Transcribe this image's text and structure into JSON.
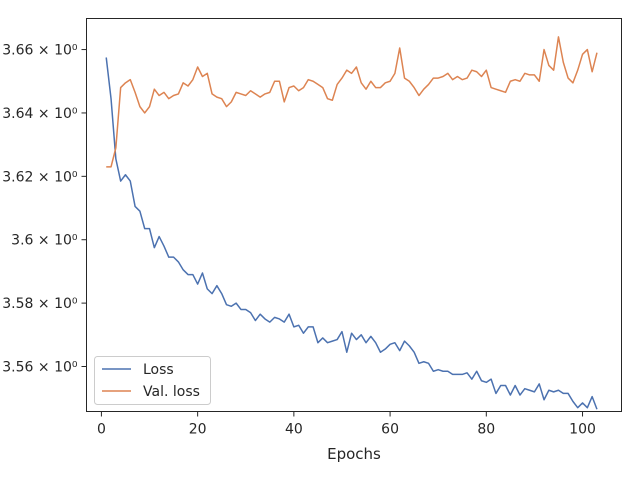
{
  "chart_data": {
    "type": "line",
    "xlabel": "Epochs",
    "ylabel": "",
    "xlim": [
      -3.1,
      108.1
    ],
    "ylim": [
      3.5458,
      3.6698
    ],
    "xticks": [
      0,
      20,
      40,
      60,
      80,
      100
    ],
    "xtick_labels": [
      "0",
      "20",
      "40",
      "60",
      "80",
      "100"
    ],
    "yticks": [
      3.56,
      3.58,
      3.6,
      3.62,
      3.64,
      3.66
    ],
    "ytick_labels": [
      "3.56 × 10⁰",
      "3.58 × 10⁰",
      "3.6 × 10⁰",
      "3.62 × 10⁰",
      "3.64 × 10⁰",
      "3.66 × 10⁰"
    ],
    "grid": false,
    "legend_position": "lower-left",
    "x": [
      1,
      2,
      3,
      4,
      5,
      6,
      7,
      8,
      9,
      10,
      11,
      12,
      13,
      14,
      15,
      16,
      17,
      18,
      19,
      20,
      21,
      22,
      23,
      24,
      25,
      26,
      27,
      28,
      29,
      30,
      31,
      32,
      33,
      34,
      35,
      36,
      37,
      38,
      39,
      40,
      41,
      42,
      43,
      44,
      45,
      46,
      47,
      48,
      49,
      50,
      51,
      52,
      53,
      54,
      55,
      56,
      57,
      58,
      59,
      60,
      61,
      62,
      63,
      64,
      65,
      66,
      67,
      68,
      69,
      70,
      71,
      72,
      73,
      74,
      75,
      76,
      77,
      78,
      79,
      80,
      81,
      82,
      83,
      84,
      85,
      86,
      87,
      88,
      89,
      90,
      91,
      92,
      93,
      94,
      95,
      96,
      97,
      98,
      99,
      100,
      101,
      102,
      103
    ],
    "series": [
      {
        "name": "Loss",
        "color": "#4c72b0",
        "values": [
          3.6575,
          3.6445,
          3.6255,
          3.6185,
          3.6205,
          3.6185,
          3.6105,
          3.609,
          3.6035,
          3.6035,
          3.5975,
          3.601,
          3.598,
          3.5945,
          3.5945,
          3.593,
          3.5905,
          3.589,
          3.589,
          3.586,
          3.5895,
          3.5845,
          3.583,
          3.5855,
          3.583,
          3.5795,
          3.579,
          3.58,
          3.578,
          3.578,
          3.577,
          3.5745,
          3.5765,
          3.575,
          3.574,
          3.5755,
          3.575,
          3.574,
          3.5765,
          3.5725,
          3.573,
          3.5705,
          3.5725,
          3.5725,
          3.5675,
          3.569,
          3.5675,
          3.568,
          3.5685,
          3.571,
          3.5645,
          3.5705,
          3.5685,
          3.57,
          3.5675,
          3.5695,
          3.5675,
          3.5645,
          3.5655,
          3.567,
          3.5675,
          3.565,
          3.568,
          3.5665,
          3.5645,
          3.561,
          3.5615,
          3.561,
          3.5585,
          3.559,
          3.5585,
          3.5585,
          3.5575,
          3.5575,
          3.5575,
          3.558,
          3.556,
          3.5585,
          3.5555,
          3.555,
          3.556,
          3.5515,
          3.554,
          3.554,
          3.551,
          3.554,
          3.551,
          3.553,
          3.5525,
          3.552,
          3.5545,
          3.5495,
          3.5525,
          3.552,
          3.5525,
          3.5515,
          3.5515,
          3.549,
          3.547,
          3.5485,
          3.547,
          3.5505,
          3.5465
        ]
      },
      {
        "name": "Val. loss",
        "color": "#dd8452",
        "values": [
          3.623,
          3.623,
          3.629,
          3.648,
          3.6495,
          3.6505,
          3.6465,
          3.642,
          3.64,
          3.642,
          3.6475,
          3.6455,
          3.6465,
          3.6445,
          3.6455,
          3.646,
          3.6495,
          3.6485,
          3.6505,
          3.6545,
          3.6515,
          3.6525,
          3.646,
          3.645,
          3.6445,
          3.642,
          3.6435,
          3.6465,
          3.646,
          3.6455,
          3.647,
          3.646,
          3.645,
          3.646,
          3.6465,
          3.65,
          3.65,
          3.6435,
          3.648,
          3.6485,
          3.647,
          3.648,
          3.6505,
          3.65,
          3.649,
          3.648,
          3.6445,
          3.644,
          3.649,
          3.651,
          3.6535,
          3.6525,
          3.6545,
          3.6495,
          3.6475,
          3.65,
          3.648,
          3.648,
          3.6495,
          3.65,
          3.6525,
          3.6605,
          3.651,
          3.65,
          3.648,
          3.6455,
          3.6475,
          3.649,
          3.651,
          3.651,
          3.6515,
          3.6525,
          3.6505,
          3.6515,
          3.6505,
          3.651,
          3.6535,
          3.653,
          3.6515,
          3.6535,
          3.648,
          3.6475,
          3.647,
          3.6465,
          3.65,
          3.6505,
          3.65,
          3.6525,
          3.652,
          3.652,
          3.65,
          3.66,
          3.655,
          3.6535,
          3.664,
          3.656,
          3.651,
          3.6495,
          3.6535,
          3.6585,
          3.66,
          3.653,
          3.659
        ]
      }
    ]
  }
}
